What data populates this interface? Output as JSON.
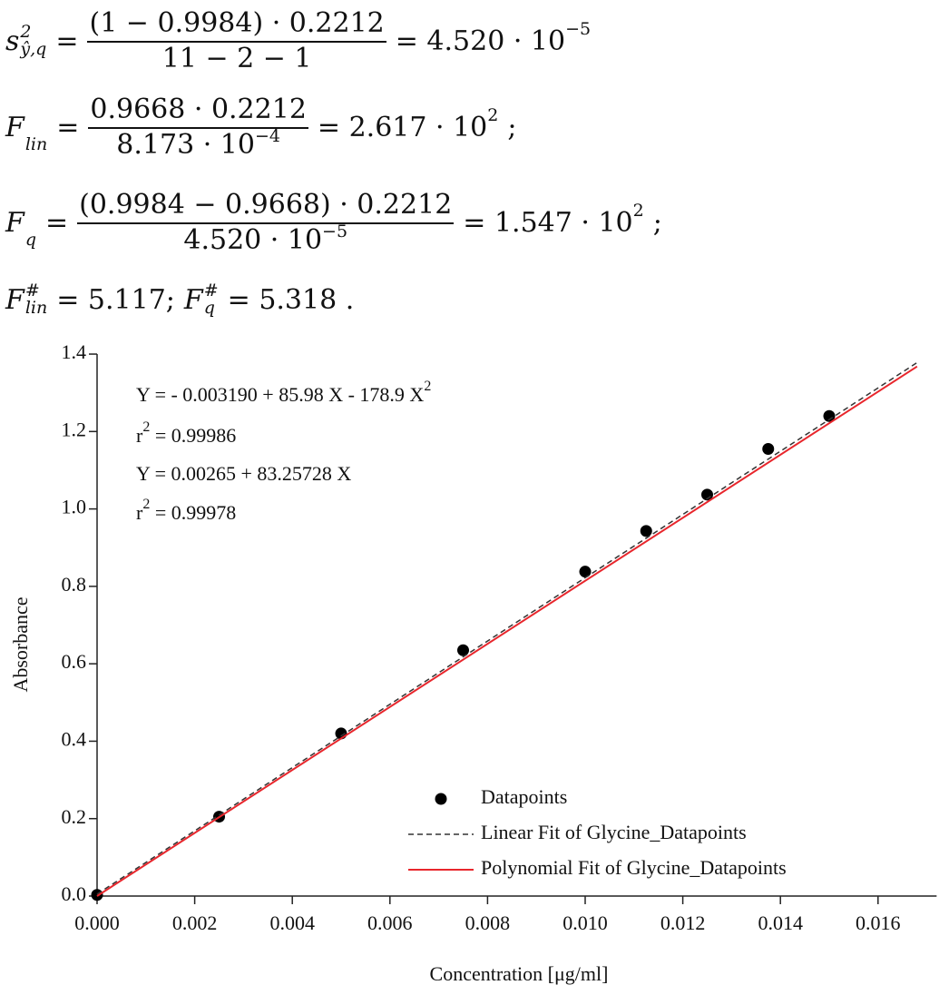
{
  "equations": [
    [
      {
        "base": "s",
        "sup": "2",
        "sub": "ŷ,q"
      },
      {
        "text": "="
      },
      {
        "frac": {
          "num": [
            {
              "text": "(1 − 0.9984) · 0.2212"
            }
          ],
          "den": [
            {
              "text": "11 − 2 − 1"
            }
          ]
        }
      },
      {
        "text": "= 4.520 · 10",
        "sup": "−5"
      }
    ],
    [
      {
        "base": "F",
        "sub": "lin"
      },
      {
        "text": "="
      },
      {
        "frac": {
          "num": [
            {
              "text": "0.9668 · 0.2212"
            }
          ],
          "den": [
            {
              "text": "8.173 · 10",
              "sup": "−4"
            }
          ]
        }
      },
      {
        "text": "= 2.617 · 10",
        "sup": "2"
      },
      {
        "text": ";"
      }
    ],
    [
      {
        "base": "F",
        "sub": "q"
      },
      {
        "text": "="
      },
      {
        "frac": {
          "num": [
            {
              "text": "(0.9984 − 0.9668) · 0.2212"
            }
          ],
          "den": [
            {
              "text": "4.520 · 10",
              "sup": "−5"
            }
          ]
        }
      },
      {
        "text": "= 1.547 · 10",
        "sup": "2"
      },
      {
        "text": ";"
      }
    ],
    [
      {
        "base": "F",
        "sup": "#",
        "sub": "lin"
      },
      {
        "text": "= 5.117;"
      },
      {
        "base": "F",
        "sup": "#",
        "sub": "q"
      },
      {
        "text": "= 5.318 ."
      }
    ]
  ],
  "chart_data": {
    "type": "scatter",
    "x_label": "Concentration [μg/ml]",
    "y_label": "Absorbance",
    "xlim": [
      0,
      0.0172
    ],
    "ylim": [
      0,
      1.4
    ],
    "xticks": [
      {
        "value": 0,
        "label": "0.000"
      },
      {
        "value": 0.002,
        "label": "0.002"
      },
      {
        "value": 0.004,
        "label": "0.004"
      },
      {
        "value": 0.006,
        "label": "0.006"
      },
      {
        "value": 0.008,
        "label": "0.008"
      },
      {
        "value": 0.01,
        "label": "0.010"
      },
      {
        "value": 0.012,
        "label": "0.012"
      },
      {
        "value": 0.014,
        "label": "0.014"
      },
      {
        "value": 0.016,
        "label": "0.016"
      }
    ],
    "yticks": [
      {
        "value": 0,
        "label": "0.0"
      },
      0.2,
      0.4,
      0.6,
      0.8,
      {
        "value": 1,
        "label": "1.0"
      },
      1.2,
      1.4
    ],
    "annotations": [
      {
        "text": "Y = - 0.003190 + 85.98 X - 178.9 X",
        "sup": "2"
      },
      {
        "text": "r",
        "sup": "2",
        "tail": " = 0.99986"
      },
      {
        "text": "Y = 0.00265 + 83.25728 X"
      },
      {
        "text": "r",
        "sup": "2",
        "tail": " = 0.99978"
      }
    ],
    "legend": "lower right",
    "series": [
      {
        "name": "Datapoints",
        "type": "scatter",
        "color": "#000000",
        "x": [
          0,
          0.0025,
          0.005,
          0.0075,
          0.01,
          0.01125,
          0.0125,
          0.01375,
          0.015
        ],
        "values": [
          0.003,
          0.205,
          0.42,
          0.635,
          0.838,
          0.943,
          1.037,
          1.155,
          1.24
        ]
      },
      {
        "name": "Linear Fit of Glycine_Datapoints",
        "type": "line",
        "dashed": true,
        "color": "#333333",
        "x": [
          0,
          0.0168
        ],
        "values": [
          0.005,
          1.378
        ]
      },
      {
        "name": "Polynomial Fit of Glycine_Datapoints",
        "type": "line",
        "color": "#e8262c",
        "x": [
          0,
          0.0168
        ],
        "values": [
          0,
          1.368
        ]
      }
    ]
  }
}
